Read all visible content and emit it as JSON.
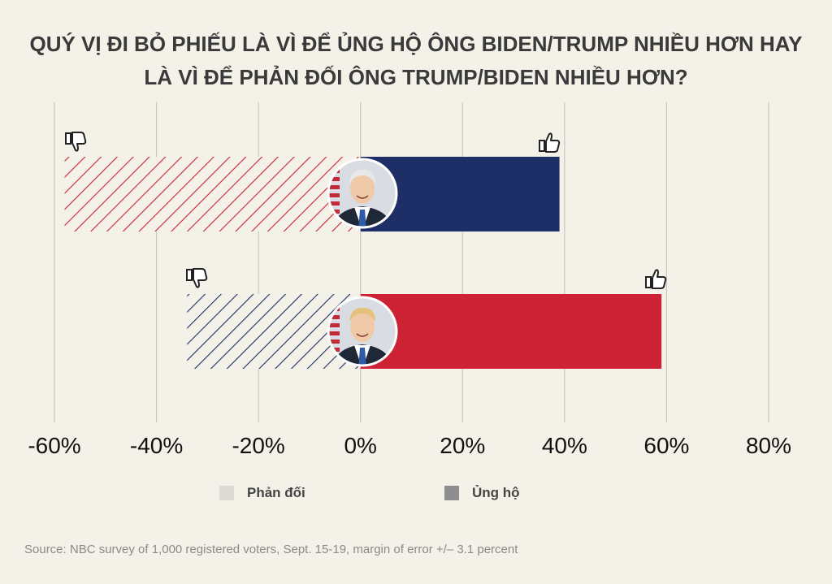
{
  "title_line1": "QUÝ VỊ ĐI BỎ PHIẾU LÀ VÌ ĐỂ ỦNG HỘ ÔNG BIDEN/TRUMP NHIỀU HƠN HAY",
  "title_line2": "LÀ VÌ ĐỂ PHẢN ĐỐI ÔNG TRUMP/BIDEN NHIỀU HƠN?",
  "legend": {
    "oppose": "Phản đối",
    "support": "Ủng hộ"
  },
  "source": "Source: NBC survey of 1,000 registered voters, Sept. 15-19, margin of error +/– 3.1 percent",
  "colors": {
    "biden": "#1d2f66",
    "trump": "#cc2233",
    "grid": "#c9c6bd",
    "legend_oppose": "#dcdad3",
    "legend_support": "#8e8e8e"
  },
  "chart_data": {
    "type": "bar",
    "orientation": "horizontal-diverging",
    "xlim": [
      -60,
      80
    ],
    "ticks": [
      "-60%",
      "-40%",
      "-20%",
      "0%",
      "20%",
      "40%",
      "60%",
      "80%"
    ],
    "tick_values": [
      -60,
      -40,
      -20,
      0,
      20,
      40,
      60,
      80
    ],
    "series": [
      {
        "name": "Biden",
        "oppose": -58,
        "support": 39,
        "color": "#1d2f66",
        "oppose_hatch_color": "#cc2233"
      },
      {
        "name": "Trump",
        "oppose": -34,
        "support": 59,
        "color": "#cc2233",
        "oppose_hatch_color": "#1d2f66"
      }
    ]
  }
}
